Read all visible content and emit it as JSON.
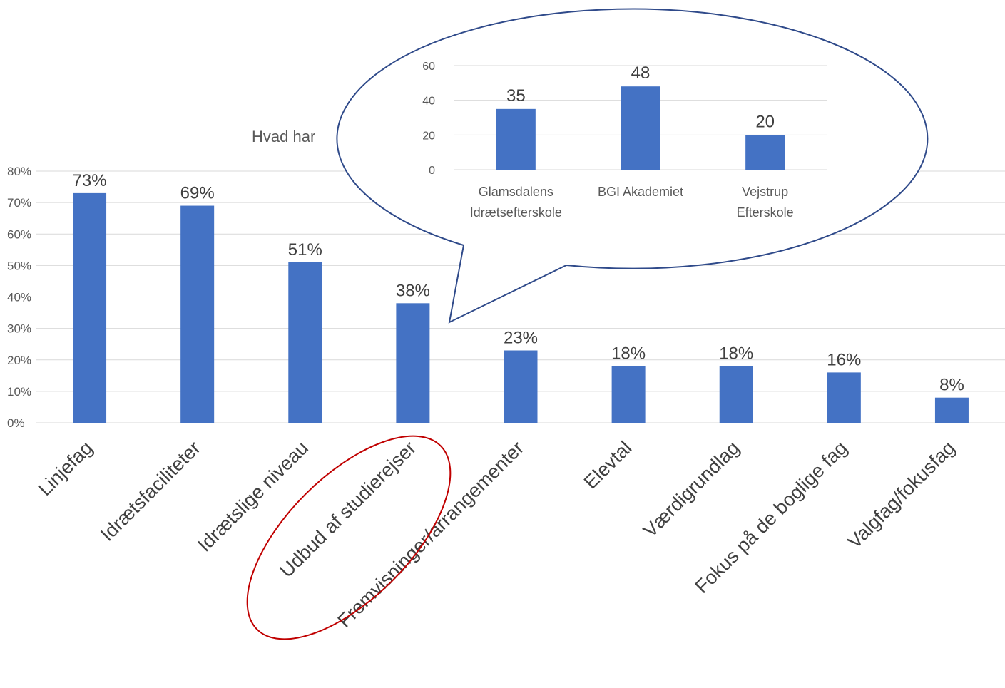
{
  "colors": {
    "bar": "#4472C4",
    "grid": "#D9D9D9",
    "callout_border": "#2F4A8A",
    "highlight_ring": "#C00000"
  },
  "chart_data": [
    {
      "type": "bar",
      "title": "Hvad har",
      "xlabel": "",
      "ylabel": "",
      "ylim": [
        0,
        0.8
      ],
      "y_tick_labels": [
        "0%",
        "10%",
        "20%",
        "30%",
        "40%",
        "50%",
        "60%",
        "70%",
        "80%"
      ],
      "grid": true,
      "categories": [
        "Linjefag",
        "Idrætsfaciliteter",
        "Idrætslige niveau",
        "Udbud af studierejser",
        "Fremvisninger/arrangementer",
        "Elevtal",
        "Værdigrundlag",
        "Fokus på de boglige fag",
        "Valgfag/fokusfag"
      ],
      "values": [
        0.73,
        0.69,
        0.51,
        0.38,
        0.23,
        0.18,
        0.18,
        0.16,
        0.08
      ],
      "data_labels": [
        "73%",
        "69%",
        "51%",
        "38%",
        "23%",
        "18%",
        "18%",
        "16%",
        "8%"
      ],
      "highlighted_category": "Udbud af studierejser"
    },
    {
      "type": "bar",
      "title": "",
      "xlabel": "",
      "ylabel": "",
      "ylim": [
        0,
        60
      ],
      "y_tick_labels": [
        "0",
        "20",
        "40",
        "60"
      ],
      "grid": true,
      "categories": [
        [
          "Glamsdalens",
          "Idrætsefterskole"
        ],
        [
          "BGI Akademiet"
        ],
        [
          "Vejstrup",
          "Efterskole"
        ]
      ],
      "values": [
        35,
        48,
        20
      ],
      "data_labels": [
        "35",
        "48",
        "20"
      ]
    }
  ]
}
